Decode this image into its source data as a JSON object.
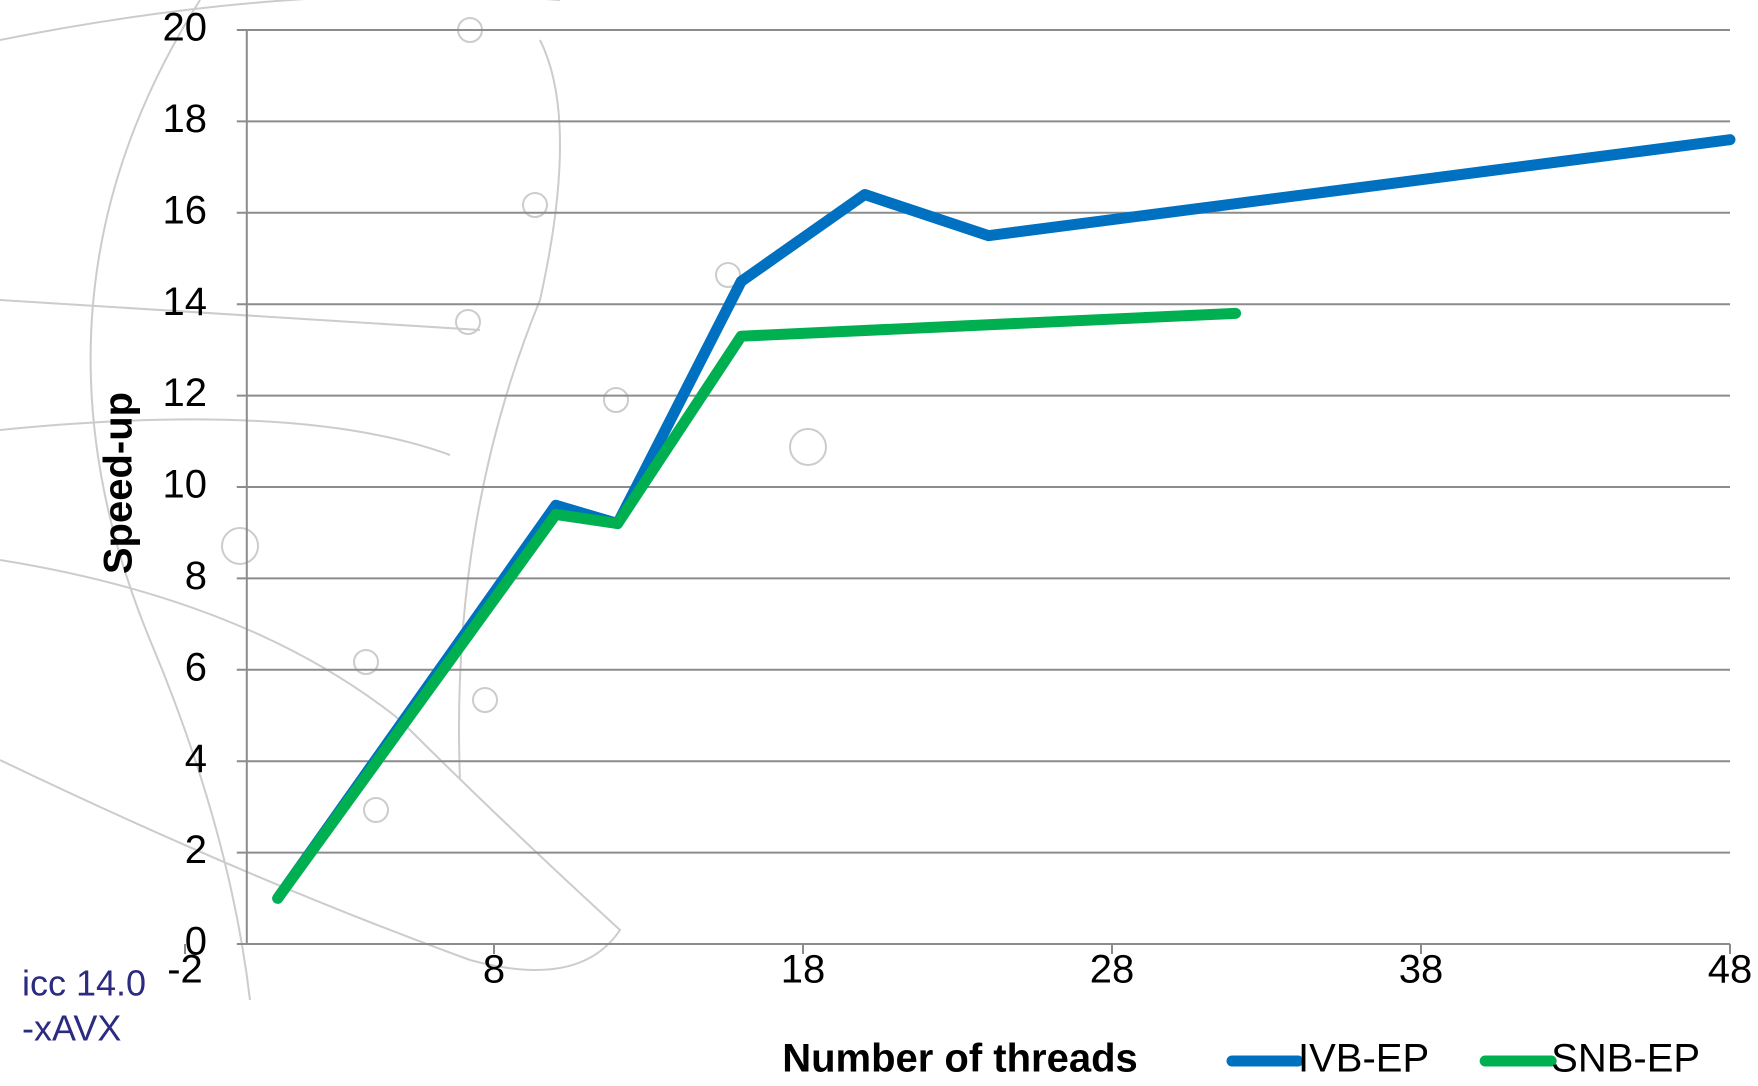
{
  "chart_data": {
    "type": "line",
    "y_label": "Speed-up",
    "x_label": "Number of threads",
    "annotation": [
      "icc 14.0",
      "-xAVX"
    ],
    "xlim": [
      -2,
      48
    ],
    "xticks": [
      -2,
      8,
      18,
      28,
      38,
      48
    ],
    "ylim": [
      0,
      20
    ],
    "yticks": [
      0,
      2,
      4,
      6,
      8,
      10,
      12,
      14,
      16,
      18,
      20
    ],
    "grid": true,
    "legend": "bottom-right",
    "series": [
      {
        "name": "IVB-EP",
        "color": "#0070c0",
        "x": [
          1,
          10,
          12,
          16,
          20,
          24,
          32,
          48
        ],
        "values": [
          1,
          9.6,
          9.2,
          14.5,
          16.4,
          15.5,
          16.2,
          17.6
        ]
      },
      {
        "name": "SNB-EP",
        "color": "#00b050",
        "x": [
          1,
          10,
          12,
          16,
          32
        ],
        "values": [
          1,
          9.4,
          9.2,
          13.3,
          13.8
        ]
      }
    ]
  }
}
